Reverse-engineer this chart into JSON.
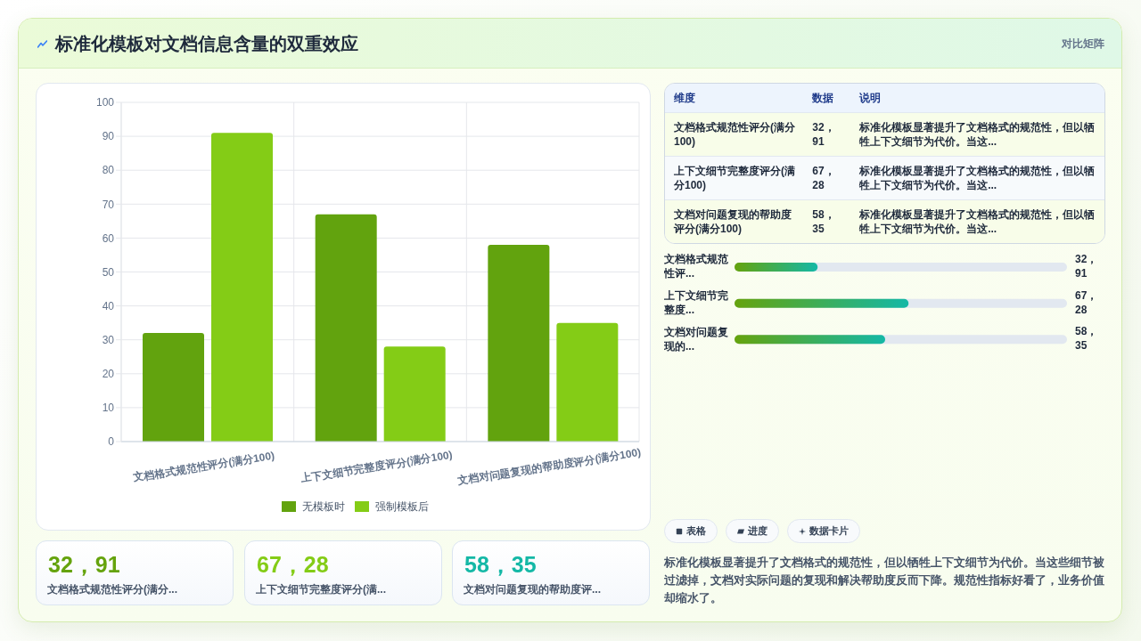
{
  "chart_data": [
    {
      "type": "bar",
      "title": "标准化模板对文档信息含量的双重效应",
      "categories": [
        "文档格式规范性评分(满分100)",
        "上下文细节完整度评分(满分100)",
        "文档对问题复现的帮助度评分(满分100)"
      ],
      "series": [
        {
          "name": "无模板时",
          "color": "#62a30e",
          "values": [
            32,
            67,
            58
          ]
        },
        {
          "name": "强制模板后",
          "color": "#84cc16",
          "values": [
            91,
            28,
            35
          ]
        }
      ],
      "ylim": [
        0,
        100
      ],
      "yticks": [
        0,
        10,
        20,
        30,
        40,
        50,
        60,
        70,
        80,
        90,
        100
      ],
      "grid": true,
      "legend": "bottom"
    },
    {
      "type": "other",
      "title": "对比矩阵",
      "annotations": [
        "维度",
        "数据",
        "说明",
        "文档格式规范性评分(满分100)",
        "32，91",
        "标准化模板显著提升了文档格式的规范性，但以牺牲上下文细节为代价。当这...",
        "上下文细节完整度评分(满分100)",
        "67，28",
        "标准化模板显著提升了文档格式的规范性，但以牺牲上下文细节为代价。当这...",
        "文档对问题复现的帮助度评分(满分100)",
        "58，35",
        "标准化模板显著提升了文档格式的规范性，但以牺牲上下文细节为代价。当这..."
      ]
    },
    {
      "type": "bar",
      "orientation": "horizontal",
      "categories": [
        "文档格式规范性评...",
        "上下文细节完整度...",
        "文档对问题复现的..."
      ],
      "values": [
        32,
        67,
        58
      ],
      "value_labels": [
        "32，91",
        "67，28",
        "58，35"
      ],
      "color": "#65a30d",
      "xlim": [
        0,
        128
      ],
      "tick_labels": "y"
    },
    {
      "type": "other",
      "annotations": [
        "32，91",
        "文档格式规范性评分(满分...",
        "67，28",
        "上下文细节完整度评分(满...",
        "58，35",
        "文档对问题复现的帮助度评..."
      ]
    },
    {
      "type": "other",
      "annotations": [
        "表格",
        "进度",
        "数据卡片",
        "标准化模板显著提升了文档格式的规范性，但以牺牲上下文细节为代价。当这些细节被过滤掉，文档对实际问题的复现和解决帮助度反而下降。规范性指标好看了，业务价值却缩水了。"
      ]
    }
  ]
}
